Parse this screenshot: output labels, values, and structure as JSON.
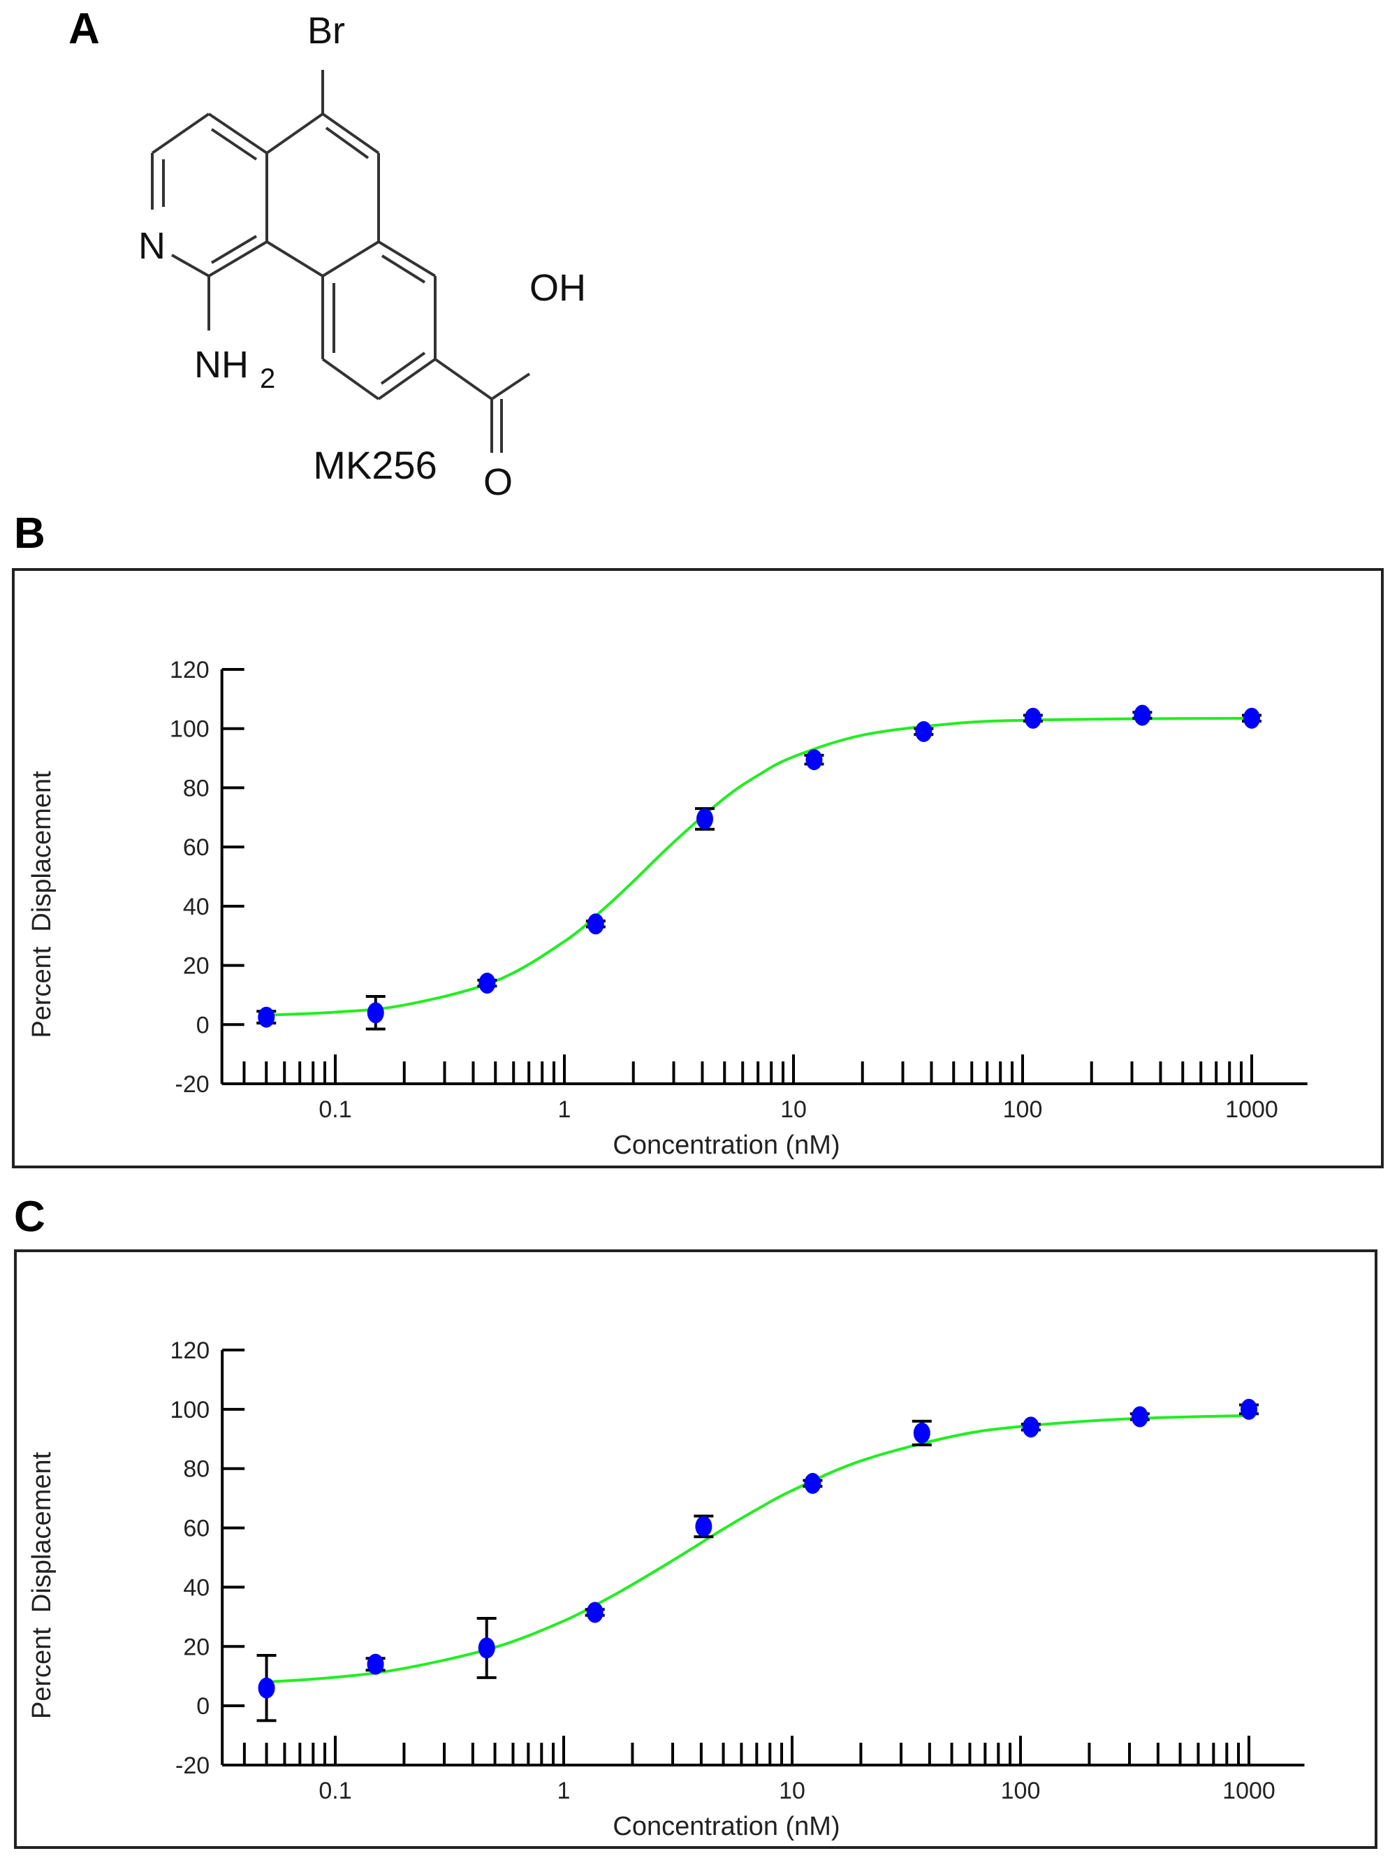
{
  "panels": {
    "a": "A",
    "b": "B",
    "c": "C"
  },
  "molecule": {
    "name": "MK256",
    "atoms": {
      "br": "Br",
      "n": "N",
      "nh": "NH",
      "nh_sub": "2",
      "oh": "OH",
      "o": "O"
    }
  },
  "colors": {
    "points": "#0000ff",
    "fit_line": "#22ee22",
    "error_bars": "#000000",
    "axes": "#000000"
  },
  "chart_data": [
    {
      "panel": "B",
      "type": "scatter",
      "xlabel": "Concentration (nM)",
      "ylabel": "Percent  Displacement",
      "x_scale": "log",
      "xlim": [
        0.032,
        1750
      ],
      "ylim": [
        -20,
        120
      ],
      "x_ticks": [
        "0.1",
        "1",
        "10",
        "100",
        "1000"
      ],
      "y_ticks": [
        "120",
        "100",
        "80",
        "60",
        "40",
        "20",
        "0",
        "-20"
      ],
      "grid": false,
      "points": {
        "x": [
          0.05,
          0.15,
          0.46,
          1.37,
          4.1,
          12.3,
          37,
          111,
          333,
          1000
        ],
        "y": [
          2.5,
          4,
          14,
          34,
          69.5,
          89.5,
          99,
          103.5,
          104.5,
          103.5
        ],
        "error": [
          2,
          5.5,
          1,
          1,
          3.5,
          1.5,
          1,
          1,
          1,
          1
        ]
      },
      "fit_curve": {
        "x": [
          0.05,
          0.1,
          0.2,
          0.5,
          1,
          1.5,
          2,
          3,
          5,
          7,
          10,
          20,
          50,
          100,
          300,
          1000
        ],
        "y": [
          3.2,
          4.2,
          6.6,
          14.7,
          28.1,
          39.4,
          48.4,
          61.6,
          76.5,
          84.2,
          90.5,
          97.8,
          101.7,
          102.8,
          103.3,
          103.5
        ]
      }
    },
    {
      "panel": "C",
      "type": "scatter",
      "xlabel": "Concentration (nM)",
      "ylabel": "Percent  Displacement",
      "x_scale": "log",
      "xlim": [
        0.032,
        1750
      ],
      "ylim": [
        -20,
        120
      ],
      "x_ticks": [
        "0.1",
        "1",
        "10",
        "100",
        "1000"
      ],
      "y_ticks": [
        "120",
        "100",
        "80",
        "60",
        "40",
        "20",
        "0",
        "-20"
      ],
      "grid": false,
      "points": {
        "x": [
          0.05,
          0.15,
          0.46,
          1.37,
          4.1,
          12.3,
          37,
          111,
          333,
          1000
        ],
        "y": [
          6,
          14,
          19.5,
          31.5,
          60.5,
          75,
          92,
          94,
          97.5,
          100
        ],
        "error": [
          11,
          2,
          10,
          1,
          3.5,
          1,
          4,
          1,
          1,
          1.5
        ]
      },
      "fit_curve": {
        "x": [
          0.05,
          0.1,
          0.2,
          0.5,
          1,
          1.5,
          2,
          3,
          5,
          7,
          10,
          20,
          50,
          100,
          300,
          1000
        ],
        "y": [
          8.0,
          9.6,
          12.6,
          19.7,
          28.6,
          35.5,
          40.9,
          49,
          59.6,
          66.2,
          72.6,
          82.6,
          90.8,
          94.2,
          96.8,
          97.9
        ]
      }
    }
  ]
}
